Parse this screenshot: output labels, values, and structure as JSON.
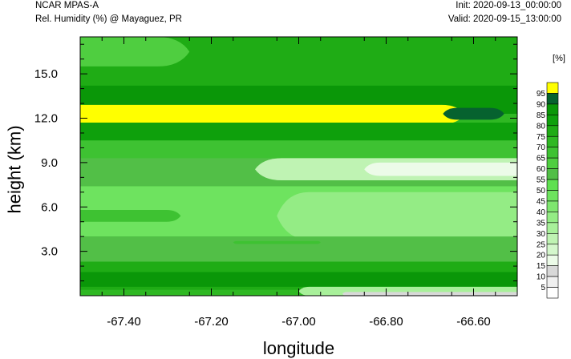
{
  "header": {
    "model": "NCAR MPAS-A",
    "field": "Rel. Humidity (%) @ Mayaguez, PR",
    "init": "Init: 2020-09-13_00:00:00",
    "valid": "Valid: 2020-09-15_13:00:00"
  },
  "chart_data": {
    "type": "heatmap",
    "subtype": "filled-contour cross-section",
    "xlabel": "longitude",
    "ylabel": "height (km)",
    "xlim": [
      -67.5,
      -66.5
    ],
    "ylim": [
      0,
      17.5
    ],
    "xticks": [
      -67.4,
      -67.2,
      -67.0,
      -66.8,
      -66.6
    ],
    "xtick_labels": [
      "-67.40",
      "-67.20",
      "-67.00",
      "-66.80",
      "-66.60"
    ],
    "yticks": [
      3.0,
      6.0,
      9.0,
      12.0,
      15.0
    ],
    "ytick_labels": [
      "3.0",
      "6.0",
      "9.0",
      "12.0",
      "15.0"
    ],
    "grid": false,
    "colorbar": {
      "unit": "[%]",
      "position": "right",
      "levels": [
        5,
        10,
        15,
        20,
        25,
        30,
        35,
        40,
        45,
        50,
        55,
        60,
        65,
        70,
        75,
        80,
        85,
        90,
        95
      ],
      "colors": [
        "#ffffff",
        "#f0f0f0",
        "#d8d8d8",
        "#ecfbe8",
        "#d4f7cc",
        "#bff3b3",
        "#a8f09a",
        "#94ec85",
        "#7fe66f",
        "#6ee35f",
        "#5fe050",
        "#52bf47",
        "#4fce40",
        "#3ec232",
        "#2fb823",
        "#1fac15",
        "#0ea00c",
        "#0a9708",
        "#06622f",
        "#ffff00"
      ]
    },
    "layers": [
      {
        "rh": 75,
        "y_bottom": 14.0,
        "y_top": 17.5,
        "x_start": -67.5,
        "x_end": -66.5
      },
      {
        "rh": 60,
        "y_bottom": 15.5,
        "y_top": 17.5,
        "x_start": -67.5,
        "x_end": -67.25
      },
      {
        "rh": 85,
        "y_bottom": 12.3,
        "y_top": 14.2,
        "x_start": -67.5,
        "x_end": -66.5
      },
      {
        "rh": 95,
        "y_bottom": 11.6,
        "y_top": 12.9,
        "x_start": -67.5,
        "x_end": -66.62
      },
      {
        "rh": 90,
        "y_bottom": 11.9,
        "y_top": 12.7,
        "x_start": -66.67,
        "x_end": -66.53
      },
      {
        "rh": 80,
        "y_bottom": 10.4,
        "y_top": 11.7,
        "x_start": -67.5,
        "x_end": -66.5
      },
      {
        "rh": 65,
        "y_bottom": 9.2,
        "y_top": 10.5,
        "x_start": -67.5,
        "x_end": -66.5
      },
      {
        "rh": 55,
        "y_bottom": 7.4,
        "y_top": 9.3,
        "x_start": -67.5,
        "x_end": -66.5
      },
      {
        "rh": 25,
        "y_bottom": 7.8,
        "y_top": 9.3,
        "x_start": -67.1,
        "x_end": -66.5
      },
      {
        "rh": 15,
        "y_bottom": 8.1,
        "y_top": 9.0,
        "x_start": -66.85,
        "x_end": -66.5
      },
      {
        "rh": 45,
        "y_bottom": 4.0,
        "y_top": 7.4,
        "x_start": -67.5,
        "x_end": -66.5
      },
      {
        "rh": 65,
        "y_bottom": 5.0,
        "y_top": 5.8,
        "x_start": -67.5,
        "x_end": -67.27
      },
      {
        "rh": 35,
        "y_bottom": 3.8,
        "y_top": 7.0,
        "x_start": -67.05,
        "x_end": -66.5
      },
      {
        "rh": 55,
        "y_bottom": 2.2,
        "y_top": 4.0,
        "x_start": -67.5,
        "x_end": -66.5
      },
      {
        "rh": 65,
        "y_bottom": 3.5,
        "y_top": 3.7,
        "x_start": -67.15,
        "x_end": -66.95
      },
      {
        "rh": 75,
        "y_bottom": 0.4,
        "y_top": 2.3,
        "x_start": -67.5,
        "x_end": -66.5
      },
      {
        "rh": 85,
        "y_bottom": 0.6,
        "y_top": 1.6,
        "x_start": -67.5,
        "x_end": -66.5
      },
      {
        "rh": 30,
        "y_bottom": 0.0,
        "y_top": 0.6,
        "x_start": -67.0,
        "x_end": -66.5
      },
      {
        "rh": 10,
        "y_bottom": 0.0,
        "y_top": 0.25,
        "x_start": -66.9,
        "x_end": -66.5
      }
    ]
  }
}
